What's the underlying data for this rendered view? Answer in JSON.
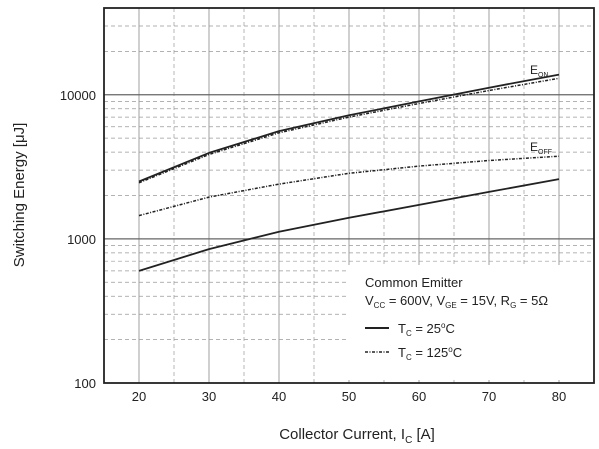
{
  "chart_data": {
    "type": "line",
    "xlabel": "Collector Current, I",
    "xlabel_sub": "C",
    "xlabel_unit": " [A]",
    "ylabel": "Switching Energy [μJ]",
    "x_ticks": [
      "20",
      "30",
      "40",
      "50",
      "60",
      "70",
      "80"
    ],
    "y_ticks": [
      "100",
      "1000",
      "10000"
    ],
    "xlim": [
      15,
      85
    ],
    "ylim": [
      100,
      40000
    ],
    "y_scale": "log",
    "grid": true,
    "series": [
      {
        "name": "E_ON",
        "condition": "T_C = 25°C",
        "style": "solid",
        "x": [
          20,
          30,
          40,
          50,
          60,
          70,
          80
        ],
        "y": [
          2500,
          3950,
          5600,
          7200,
          9000,
          11200,
          13800
        ]
      },
      {
        "name": "E_ON",
        "condition": "T_C = 125°C",
        "style": "dashdot",
        "x": [
          20,
          30,
          40,
          50,
          60,
          70,
          80
        ],
        "y": [
          2450,
          3850,
          5450,
          7000,
          8700,
          10700,
          13000
        ]
      },
      {
        "name": "E_OFF",
        "condition": "T_C = 125°C",
        "style": "dashdot",
        "x": [
          20,
          30,
          40,
          50,
          60,
          70,
          80
        ],
        "y": [
          1450,
          1950,
          2400,
          2850,
          3200,
          3500,
          3750
        ]
      },
      {
        "name": "E_OFF",
        "condition": "T_C = 25°C",
        "style": "solid",
        "x": [
          20,
          30,
          40,
          50,
          60,
          70,
          80
        ],
        "y": [
          600,
          850,
          1120,
          1400,
          1720,
          2120,
          2600
        ]
      }
    ],
    "curve_labels": [
      {
        "main": "E",
        "sub": "ON"
      },
      {
        "main": "E",
        "sub": "OFF"
      }
    ],
    "legend": {
      "placement": "bottom-right",
      "title": "Common Emitter",
      "condition": [
        "V",
        "CC",
        " = 600V, V",
        "GE",
        " = 15V, R",
        "G",
        " = 5Ω"
      ],
      "entries": [
        {
          "main": "T",
          "sub": "C",
          "rest": " = 25",
          "sup": "o",
          "unit": "C",
          "style": "solid"
        },
        {
          "main": "T",
          "sub": "C",
          "rest": " = 125",
          "sup": "o",
          "unit": "C",
          "style": "dashdot"
        }
      ]
    }
  }
}
